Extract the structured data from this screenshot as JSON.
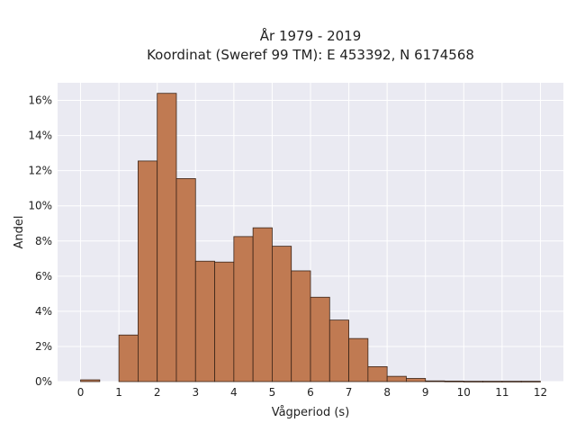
{
  "chart_data": {
    "type": "bar",
    "title_line1": "År 1979 - 2019",
    "title_line2": "Koordinat (Sweref 99 TM): E 453392, N 6174568",
    "xlabel": "Vågperiod (s)",
    "ylabel": "Andel",
    "bin_width": 0.5,
    "bins": [
      {
        "start": 0.0,
        "value": 0.1
      },
      {
        "start": 0.5,
        "value": 0.0
      },
      {
        "start": 1.0,
        "value": 2.65
      },
      {
        "start": 1.5,
        "value": 12.55
      },
      {
        "start": 2.0,
        "value": 16.4
      },
      {
        "start": 2.5,
        "value": 11.55
      },
      {
        "start": 3.0,
        "value": 6.85
      },
      {
        "start": 3.5,
        "value": 6.8
      },
      {
        "start": 4.0,
        "value": 8.25
      },
      {
        "start": 4.5,
        "value": 8.75
      },
      {
        "start": 5.0,
        "value": 7.7
      },
      {
        "start": 5.5,
        "value": 6.3
      },
      {
        "start": 6.0,
        "value": 4.8
      },
      {
        "start": 6.5,
        "value": 3.5
      },
      {
        "start": 7.0,
        "value": 2.45
      },
      {
        "start": 7.5,
        "value": 0.85
      },
      {
        "start": 8.0,
        "value": 0.3
      },
      {
        "start": 8.5,
        "value": 0.18
      },
      {
        "start": 9.0,
        "value": 0.04
      },
      {
        "start": 9.5,
        "value": 0.03
      },
      {
        "start": 10.0,
        "value": 0.02
      },
      {
        "start": 10.5,
        "value": 0.02
      },
      {
        "start": 11.0,
        "value": 0.02
      },
      {
        "start": 11.5,
        "value": 0.02
      }
    ],
    "xlim": [
      -0.6,
      12.6
    ],
    "ylim": [
      0,
      17
    ],
    "x_ticks": [
      0,
      1,
      2,
      3,
      4,
      5,
      6,
      7,
      8,
      9,
      10,
      11,
      12
    ],
    "y_ticks": [
      0,
      2,
      4,
      6,
      8,
      10,
      12,
      14,
      16
    ],
    "y_tick_labels": [
      "0%",
      "2%",
      "4%",
      "6%",
      "8%",
      "10%",
      "12%",
      "14%",
      "16%"
    ],
    "grid": true,
    "colors": {
      "bar_fill": "#c07a52",
      "bar_edge": "#3a2418",
      "plot_background": "#eaeaf2",
      "grid": "#ffffff"
    }
  }
}
